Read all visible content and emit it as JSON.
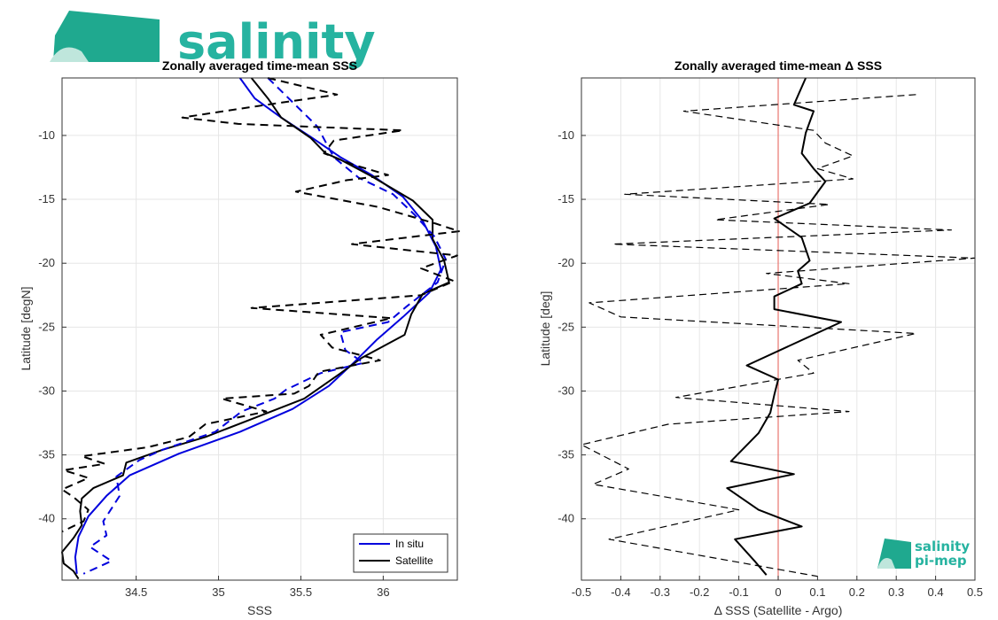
{
  "brand": {
    "logo_text": "salinity",
    "logo_small_line1": "salinity",
    "logo_small_line2": "pi-mep"
  },
  "chart_data": [
    {
      "type": "line",
      "title": "Zonally averaged time-mean SSS",
      "xlabel": "SSS",
      "ylabel": "Latitude [degN]",
      "xlim": [
        34.05,
        36.45
      ],
      "ylim": [
        -44.8,
        -5.5
      ],
      "xticks": [
        34.5,
        35,
        35.5,
        36
      ],
      "yticks": [
        -10,
        -15,
        -20,
        -25,
        -30,
        -35,
        -40
      ],
      "grid": true,
      "legend_position": "bottom-right",
      "series": [
        {
          "name": "In situ",
          "color": "#0000dd",
          "dash": "solid",
          "width": 2,
          "points": [
            [
              35.13,
              -5.5
            ],
            [
              35.22,
              -7.1
            ],
            [
              35.38,
              -8.6
            ],
            [
              35.57,
              -10.2
            ],
            [
              35.74,
              -11.7
            ],
            [
              35.93,
              -13.1
            ],
            [
              36.12,
              -14.8
            ],
            [
              36.24,
              -16.7
            ],
            [
              36.32,
              -18.7
            ],
            [
              36.35,
              -20.5
            ],
            [
              36.28,
              -22.3
            ],
            [
              36.12,
              -24.2
            ],
            [
              35.96,
              -26.0
            ],
            [
              35.82,
              -27.8
            ],
            [
              35.67,
              -29.6
            ],
            [
              35.45,
              -31.4
            ],
            [
              35.13,
              -33.2
            ],
            [
              34.76,
              -34.9
            ],
            [
              34.46,
              -36.6
            ],
            [
              34.32,
              -38.2
            ],
            [
              34.21,
              -39.8
            ],
            [
              34.15,
              -41.4
            ],
            [
              34.13,
              -43.0
            ],
            [
              34.14,
              -44.3
            ]
          ]
        },
        {
          "name": "Satellite",
          "color": "#000000",
          "dash": "solid",
          "width": 2,
          "points": [
            [
              35.2,
              -5.5
            ],
            [
              35.3,
              -7.1
            ],
            [
              35.38,
              -8.6
            ],
            [
              35.56,
              -10.2
            ],
            [
              35.65,
              -11.4
            ],
            [
              35.74,
              -11.9
            ],
            [
              35.93,
              -13.2
            ],
            [
              36.18,
              -15.1
            ],
            [
              36.3,
              -16.6
            ],
            [
              36.3,
              -18.1
            ],
            [
              36.37,
              -19.8
            ],
            [
              36.4,
              -21.5
            ],
            [
              36.24,
              -22.4
            ],
            [
              36.17,
              -24.0
            ],
            [
              36.13,
              -25.6
            ],
            [
              35.87,
              -27.4
            ],
            [
              35.72,
              -28.8
            ],
            [
              35.52,
              -30.6
            ],
            [
              35.22,
              -32.1
            ],
            [
              34.92,
              -33.6
            ],
            [
              34.66,
              -34.6
            ],
            [
              34.44,
              -35.6
            ],
            [
              34.42,
              -36.6
            ],
            [
              34.24,
              -37.6
            ],
            [
              34.17,
              -38.4
            ],
            [
              34.16,
              -39.4
            ],
            [
              34.17,
              -40.5
            ],
            [
              34.12,
              -41.5
            ],
            [
              34.05,
              -42.6
            ],
            [
              34.06,
              -43.5
            ],
            [
              34.12,
              -44.1
            ],
            [
              34.15,
              -44.7
            ]
          ]
        },
        {
          "name": "",
          "color": "#0000dd",
          "dash": "dashed",
          "width": 2,
          "points": [
            [
              35.3,
              -5.5
            ],
            [
              35.6,
              -9.3
            ],
            [
              35.7,
              -11.7
            ],
            [
              35.85,
              -13.3
            ],
            [
              36.06,
              -14.6
            ],
            [
              36.19,
              -16.2
            ],
            [
              36.31,
              -17.9
            ],
            [
              36.38,
              -19.7
            ],
            [
              36.33,
              -21.5
            ],
            [
              36.14,
              -23.4
            ],
            [
              36.03,
              -24.6
            ],
            [
              35.74,
              -25.4
            ],
            [
              35.77,
              -26.8
            ],
            [
              35.88,
              -27.8
            ],
            [
              35.62,
              -28.6
            ],
            [
              35.41,
              -29.9
            ],
            [
              35.34,
              -30.6
            ],
            [
              35.14,
              -31.6
            ],
            [
              34.98,
              -33.2
            ],
            [
              34.66,
              -34.6
            ],
            [
              34.52,
              -35.4
            ],
            [
              34.38,
              -36.7
            ],
            [
              34.4,
              -38.2
            ],
            [
              34.35,
              -39.2
            ],
            [
              34.3,
              -40.2
            ],
            [
              34.32,
              -41.3
            ],
            [
              34.22,
              -42.2
            ],
            [
              34.35,
              -43.3
            ],
            [
              34.18,
              -44.3
            ]
          ]
        },
        {
          "name": "",
          "color": "#000000",
          "dash": "dashed",
          "width": 2,
          "points": [
            [
              35.3,
              -5.5
            ],
            [
              35.72,
              -6.8
            ],
            [
              35.24,
              -7.7
            ],
            [
              34.78,
              -8.6
            ],
            [
              35.12,
              -9.1
            ],
            [
              36.12,
              -9.6
            ],
            [
              35.7,
              -10.4
            ],
            [
              35.64,
              -11.4
            ],
            [
              35.82,
              -12.3
            ],
            [
              36.03,
              -13.1
            ],
            [
              35.78,
              -13.5
            ],
            [
              35.47,
              -14.4
            ],
            [
              35.97,
              -15.6
            ],
            [
              36.32,
              -16.9
            ],
            [
              36.46,
              -17.5
            ],
            [
              35.81,
              -18.5
            ],
            [
              36.45,
              -19.4
            ],
            [
              36.23,
              -20.4
            ],
            [
              36.43,
              -21.4
            ],
            [
              36.23,
              -22.5
            ],
            [
              35.2,
              -23.5
            ],
            [
              36.05,
              -24.3
            ],
            [
              35.62,
              -25.6
            ],
            [
              35.69,
              -26.6
            ],
            [
              35.98,
              -27.6
            ],
            [
              35.61,
              -28.5
            ],
            [
              35.55,
              -29.6
            ],
            [
              35.46,
              -30.2
            ],
            [
              35.02,
              -30.6
            ],
            [
              35.29,
              -31.6
            ],
            [
              34.92,
              -32.6
            ],
            [
              34.82,
              -33.6
            ],
            [
              34.57,
              -34.4
            ],
            [
              34.17,
              -35.1
            ],
            [
              34.31,
              -35.7
            ],
            [
              34.06,
              -36.2
            ],
            [
              34.21,
              -36.8
            ],
            [
              34.05,
              -37.7
            ],
            [
              34.12,
              -38.3
            ],
            [
              34.21,
              -39.3
            ],
            [
              34.18,
              -40.2
            ],
            [
              34.05,
              -41.0
            ]
          ]
        }
      ]
    },
    {
      "type": "line",
      "title": "Zonally averaged time-mean Δ SSS",
      "xlabel": "Δ SSS (Satellite - Argo)",
      "ylabel": "Latitude [deg]",
      "xlim": [
        -0.5,
        0.5
      ],
      "ylim": [
        -44.8,
        -5.5
      ],
      "xticks": [
        -0.5,
        -0.4,
        -0.3,
        -0.2,
        -0.1,
        0,
        0.1,
        0.2,
        0.3,
        0.4,
        0.5
      ],
      "yticks": [
        -10,
        -15,
        -20,
        -25,
        -30,
        -35,
        -40
      ],
      "grid": true,
      "reference_line": {
        "x": 0,
        "color": "#e8756f"
      },
      "series": [
        {
          "name": "",
          "color": "#000000",
          "dash": "solid",
          "width": 2,
          "points": [
            [
              0.07,
              -5.5
            ],
            [
              0.05,
              -6.9
            ],
            [
              0.04,
              -7.6
            ],
            [
              0.09,
              -8.1
            ],
            [
              0.07,
              -9.8
            ],
            [
              0.06,
              -11.4
            ],
            [
              0.09,
              -12.6
            ],
            [
              0.12,
              -13.6
            ],
            [
              0.08,
              -15.3
            ],
            [
              -0.01,
              -16.5
            ],
            [
              0.06,
              -18.0
            ],
            [
              0.08,
              -19.8
            ],
            [
              0.05,
              -20.6
            ],
            [
              0.06,
              -21.6
            ],
            [
              -0.01,
              -22.6
            ],
            [
              -0.01,
              -23.6
            ],
            [
              0.16,
              -24.6
            ],
            [
              -0.08,
              -28.0
            ],
            [
              0.0,
              -29.1
            ],
            [
              -0.01,
              -30.3
            ],
            [
              -0.02,
              -31.7
            ],
            [
              -0.05,
              -33.3
            ],
            [
              -0.12,
              -35.5
            ],
            [
              0.04,
              -36.5
            ],
            [
              -0.13,
              -37.6
            ],
            [
              -0.05,
              -39.3
            ],
            [
              0.06,
              -40.6
            ],
            [
              -0.11,
              -41.6
            ],
            [
              -0.06,
              -43.3
            ],
            [
              -0.03,
              -44.4
            ]
          ]
        },
        {
          "name": "",
          "color": "#000000",
          "dash": "dashed",
          "width": 1.2,
          "points": [
            [
              0.35,
              -6.8
            ],
            [
              -0.24,
              -8.1
            ],
            [
              0.09,
              -9.6
            ],
            [
              0.12,
              -10.6
            ],
            [
              0.19,
              -11.6
            ],
            [
              0.1,
              -12.6
            ],
            [
              0.19,
              -13.4
            ],
            [
              -0.39,
              -14.6
            ],
            [
              0.13,
              -15.4
            ],
            [
              -0.16,
              -16.6
            ],
            [
              0.44,
              -17.4
            ],
            [
              -0.42,
              -18.5
            ],
            [
              0.5,
              -19.6
            ],
            [
              -0.03,
              -20.8
            ],
            [
              0.18,
              -21.6
            ],
            [
              -0.48,
              -23.1
            ],
            [
              -0.4,
              -24.2
            ],
            [
              0.35,
              -25.5
            ],
            [
              0.05,
              -27.6
            ],
            [
              0.09,
              -28.6
            ],
            [
              -0.26,
              -30.5
            ],
            [
              0.18,
              -31.6
            ],
            [
              -0.28,
              -32.6
            ],
            [
              -0.5,
              -34.2
            ],
            [
              -0.38,
              -36.1
            ],
            [
              -0.47,
              -37.3
            ],
            [
              -0.1,
              -39.3
            ],
            [
              -0.43,
              -41.6
            ],
            [
              0.1,
              -44.5
            ]
          ]
        }
      ]
    }
  ]
}
